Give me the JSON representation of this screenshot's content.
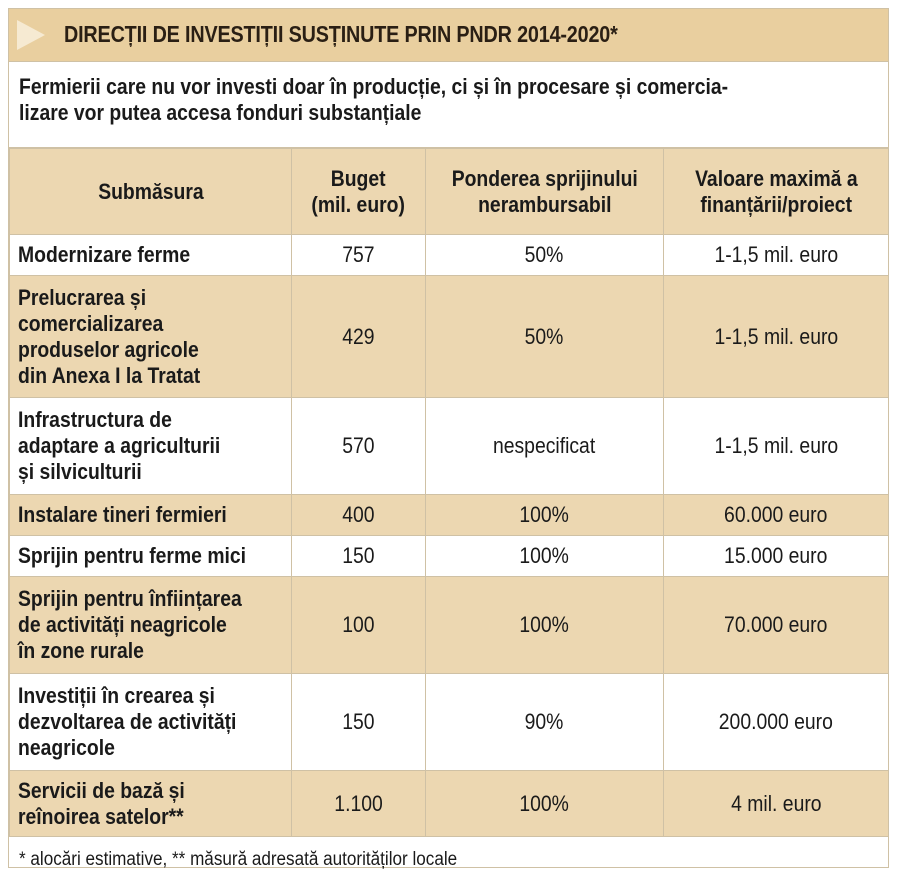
{
  "title": "DIRECȚII DE INVESTIȚII SUSȚINUTE PRIN PNDR 2014-2020*",
  "subtitle": {
    "line1": "Fermierii care nu vor investi doar în producție, ci și în procesare și comercia-",
    "line2": "lizare vor putea accesa fonduri substanțiale"
  },
  "table": {
    "headers": {
      "submasura": "Submăsura",
      "buget": [
        "Buget",
        "(mil. euro)"
      ],
      "ponderea": [
        "Ponderea sprijinului",
        "nerambursabil"
      ],
      "valoare": [
        "Valoare maximă a",
        "finanțării/proiect"
      ]
    },
    "rows": [
      {
        "name": [
          "Modernizare ferme"
        ],
        "buget": "757",
        "ponderea": "50%",
        "valoare": "1-1,5 mil. euro"
      },
      {
        "name": [
          "Prelucrarea și",
          "comercializarea",
          "produselor agricole",
          "din Anexa I la Tratat"
        ],
        "buget": "429",
        "ponderea": "50%",
        "valoare": "1-1,5 mil. euro"
      },
      {
        "name": [
          "Infrastructura de",
          "adaptare a agriculturii",
          "și silviculturii"
        ],
        "buget": "570",
        "ponderea": "nespecificat",
        "valoare": "1-1,5 mil. euro"
      },
      {
        "name": [
          "Instalare tineri fermieri"
        ],
        "buget": "400",
        "ponderea": "100%",
        "valoare": "60.000 euro"
      },
      {
        "name": [
          "Sprijin pentru ferme mici"
        ],
        "buget": "150",
        "ponderea": "100%",
        "valoare": "15.000 euro"
      },
      {
        "name": [
          "Sprijin pentru înființarea",
          "de activități neagricole",
          "în zone rurale"
        ],
        "buget": "100",
        "ponderea": "100%",
        "valoare": "70.000 euro"
      },
      {
        "name": [
          "Investiții în crearea și",
          "dezvoltarea de activități",
          "neagricole"
        ],
        "buget": "150",
        "ponderea": "90%",
        "valoare": "200.000 euro"
      },
      {
        "name": [
          "Servicii de bază și",
          "reînoirea satelor**"
        ],
        "buget": "1.100",
        "ponderea": "100%",
        "valoare": "4 mil. euro"
      }
    ]
  },
  "footnote": "* alocări estimative, ** măsură adresată autorităților locale",
  "colors": {
    "header_band": "#e9cf9f",
    "tan_row": "#ecd7b1",
    "border": "#cfc1a5"
  }
}
